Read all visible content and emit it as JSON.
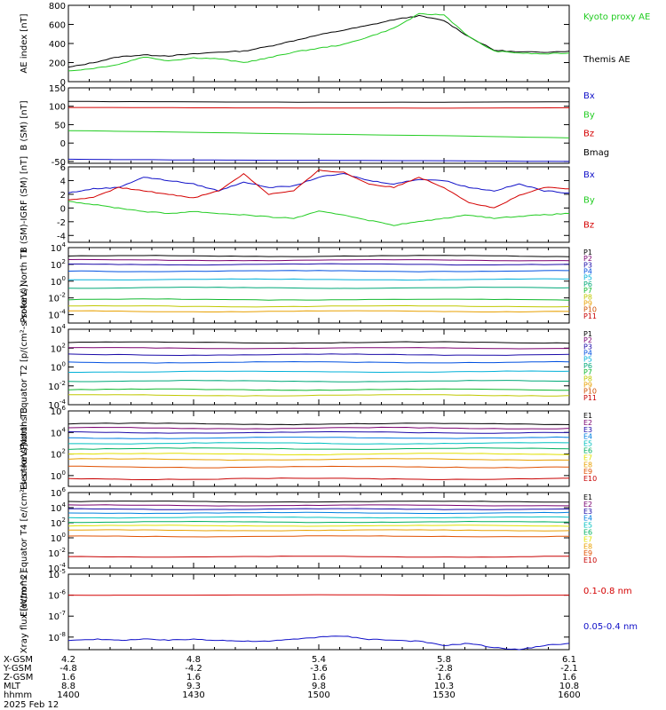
{
  "date_label": "2025 Feb 12",
  "colors": {
    "black": "#000000",
    "red": "#d40000",
    "green": "#22cc22",
    "blue": "#1010c8",
    "P": [
      "#000000",
      "#7a0070",
      "#1a0aa8",
      "#0050e0",
      "#00b0d8",
      "#00a878",
      "#10b830",
      "#c0c800",
      "#e8a000",
      "#d05000",
      "#c80000"
    ],
    "E": [
      "#000000",
      "#7a0070",
      "#1a0aa8",
      "#0080e0",
      "#00c0c0",
      "#00b060",
      "#e0e000",
      "#e8a000",
      "#e05000",
      "#c80000"
    ]
  },
  "time_axis": {
    "ticks": [
      "1400",
      "1430",
      "1500",
      "1530",
      "1600"
    ],
    "rows": [
      {
        "label": "X-GSM",
        "values": [
          "4.2",
          "4.8",
          "5.4",
          "5.8",
          "6.1"
        ]
      },
      {
        "label": "Y-GSM",
        "values": [
          "-4.8",
          "-4.2",
          "-3.6",
          "-2.8",
          "-2.1"
        ]
      },
      {
        "label": "Z-GSM",
        "values": [
          "1.6",
          "1.6",
          "1.6",
          "1.6",
          "1.6"
        ]
      },
      {
        "label": "MLT",
        "values": [
          "8.8",
          "9.3",
          "9.8",
          "10.3",
          "10.8"
        ]
      },
      {
        "label": "hhmm",
        "values": [
          "1400",
          "1430",
          "1500",
          "1530",
          "1600"
        ]
      }
    ]
  },
  "chart_data": [
    {
      "type": "line",
      "id": "ae",
      "ylabel": "AE index [nT]",
      "ylim": [
        0,
        800
      ],
      "yticks": [
        "0",
        "200",
        "400",
        "600",
        "800"
      ],
      "scale": "linear",
      "x_range_minutes": [
        0,
        120
      ],
      "series": [
        {
          "name": "Themis AE",
          "color": "#000000",
          "x": [
            0,
            6,
            12,
            18,
            24,
            30,
            36,
            42,
            48,
            54,
            60,
            66,
            72,
            78,
            84,
            90,
            96,
            102,
            108,
            114,
            120
          ],
          "y": [
            150,
            200,
            260,
            280,
            270,
            290,
            310,
            320,
            370,
            430,
            490,
            540,
            590,
            650,
            690,
            640,
            470,
            330,
            310,
            310,
            320
          ]
        },
        {
          "name": "Kyoto proxy AE",
          "color": "#22cc22",
          "x": [
            0,
            6,
            12,
            18,
            24,
            30,
            36,
            42,
            48,
            54,
            60,
            66,
            72,
            78,
            84,
            90,
            96,
            102,
            108,
            114,
            120
          ],
          "y": [
            110,
            140,
            180,
            260,
            220,
            250,
            240,
            200,
            250,
            310,
            350,
            390,
            470,
            560,
            710,
            700,
            470,
            320,
            300,
            290,
            300
          ]
        }
      ],
      "legend": [
        "Kyoto proxy AE",
        "Themis AE"
      ]
    },
    {
      "type": "line",
      "id": "bsm",
      "ylabel": "B (SM) [nT]",
      "ylim": [
        -55,
        150
      ],
      "yticks": [
        "-50",
        "0",
        "50",
        "100",
        "150"
      ],
      "scale": "linear",
      "series": [
        {
          "name": "Bx",
          "color": "#1010c8",
          "x": [
            0,
            30,
            60,
            90,
            120
          ],
          "y": [
            -44,
            -46,
            -47,
            -48,
            -50
          ]
        },
        {
          "name": "By",
          "color": "#22cc22",
          "x": [
            0,
            30,
            60,
            90,
            120
          ],
          "y": [
            34,
            29,
            24,
            20,
            14
          ]
        },
        {
          "name": "Bz",
          "color": "#d40000",
          "x": [
            0,
            30,
            60,
            90,
            120
          ],
          "y": [
            97,
            96,
            95,
            95,
            96
          ]
        },
        {
          "name": "Bmag",
          "color": "#000000",
          "x": [
            0,
            30,
            60,
            90,
            120
          ],
          "y": [
            113,
            112,
            111,
            111,
            112
          ]
        }
      ],
      "legend": [
        "Bx",
        "By",
        "Bz",
        "Bmag"
      ]
    },
    {
      "type": "line",
      "id": "bigrf",
      "ylabel": "B (SM)-IGRF (SM) [nT]",
      "ylim": [
        -5,
        6
      ],
      "yticks": [
        "-4",
        "-2",
        "0",
        "2",
        "4",
        "6"
      ],
      "scale": "linear",
      "series": [
        {
          "name": "Bx",
          "color": "#1010c8",
          "x": [
            0,
            6,
            12,
            18,
            24,
            30,
            36,
            42,
            48,
            54,
            60,
            66,
            72,
            78,
            84,
            90,
            96,
            102,
            108,
            114,
            120
          ],
          "y": [
            2.2,
            2.8,
            3.0,
            4.5,
            4.0,
            3.5,
            2.5,
            3.8,
            3.0,
            3.2,
            4.5,
            5.0,
            4.0,
            3.5,
            4.2,
            4.0,
            3.0,
            2.5,
            3.5,
            2.5,
            2.2
          ]
        },
        {
          "name": "By",
          "color": "#22cc22",
          "x": [
            0,
            6,
            12,
            18,
            24,
            30,
            36,
            42,
            48,
            54,
            60,
            66,
            72,
            78,
            84,
            90,
            96,
            102,
            108,
            114,
            120
          ],
          "y": [
            1.0,
            0.5,
            0.0,
            -0.5,
            -0.8,
            -0.5,
            -0.8,
            -1.0,
            -1.3,
            -1.5,
            -0.5,
            -1.0,
            -1.8,
            -2.5,
            -2.0,
            -1.5,
            -1.0,
            -1.5,
            -1.2,
            -1.0,
            -0.8
          ]
        },
        {
          "name": "Bz",
          "color": "#d40000",
          "x": [
            0,
            6,
            12,
            18,
            24,
            30,
            36,
            42,
            48,
            54,
            60,
            66,
            72,
            78,
            84,
            90,
            96,
            102,
            108,
            114,
            120
          ],
          "y": [
            1.2,
            1.5,
            3.0,
            2.5,
            2.0,
            1.5,
            2.5,
            5.0,
            2.0,
            2.5,
            5.5,
            5.2,
            3.5,
            3.0,
            4.5,
            3.0,
            0.8,
            0.0,
            1.8,
            3.0,
            2.8
          ]
        }
      ],
      "legend": [
        "Bx",
        "By",
        "Bz"
      ]
    },
    {
      "type": "line",
      "id": "pn",
      "ylabel": "Protons North T1",
      "scale": "log",
      "ylim_exp": [
        -5,
        4
      ],
      "ytick_exps": [
        -4,
        -2,
        0,
        2,
        4
      ],
      "series": [
        {
          "name": "P1",
          "y_exp": 3.0
        },
        {
          "name": "P2",
          "y_exp": 2.5
        },
        {
          "name": "P3",
          "y_exp": 2.0
        },
        {
          "name": "P4",
          "y_exp": 1.2
        },
        {
          "name": "P5",
          "y_exp": 0.2
        },
        {
          "name": "P6",
          "y_exp": -0.8
        },
        {
          "name": "P7",
          "y_exp": -2.2
        },
        {
          "name": "P8",
          "y_exp": -3.0
        },
        {
          "name": "P9",
          "y_exp": -3.6
        },
        {
          "name": "P10",
          "y_exp": null
        },
        {
          "name": "P11",
          "y_exp": null
        }
      ],
      "legend": [
        "P1",
        "P2",
        "P3",
        "P4",
        "P5",
        "P6",
        "P7",
        "P8",
        "P9",
        "P10",
        "P11"
      ]
    },
    {
      "type": "line",
      "id": "pe",
      "ylabel": "Protons Equator T2 [p/(cm²-s-sr-keV)]",
      "scale": "log",
      "ylim_exp": [
        -4,
        4
      ],
      "ytick_exps": [
        -4,
        -2,
        0,
        2,
        4
      ],
      "series": [
        {
          "name": "P1",
          "y_exp": 2.6
        },
        {
          "name": "P2",
          "y_exp": 2.0
        },
        {
          "name": "P3",
          "y_exp": 1.3
        },
        {
          "name": "P4",
          "y_exp": 0.5
        },
        {
          "name": "P5",
          "y_exp": -0.5
        },
        {
          "name": "P6",
          "y_exp": -1.5
        },
        {
          "name": "P7",
          "y_exp": -2.4
        },
        {
          "name": "P8",
          "y_exp": -3.0
        },
        {
          "name": "P9",
          "y_exp": null
        },
        {
          "name": "P10",
          "y_exp": null
        },
        {
          "name": "P11",
          "y_exp": null
        }
      ],
      "legend": [
        "P1",
        "P2",
        "P3",
        "P4",
        "P5",
        "P6",
        "P7",
        "P8",
        "P9",
        "P10",
        "P11"
      ]
    },
    {
      "type": "line",
      "id": "en",
      "ylabel": "Electrons North T3",
      "scale": "log",
      "ylim_exp": [
        -1,
        6
      ],
      "ytick_exps": [
        0,
        2,
        4,
        6
      ],
      "series": [
        {
          "name": "E1",
          "y_exp": 4.8
        },
        {
          "name": "E2",
          "y_exp": 4.4
        },
        {
          "name": "E3",
          "y_exp": 4.0
        },
        {
          "name": "E4",
          "y_exp": 3.5
        },
        {
          "name": "E5",
          "y_exp": 3.0
        },
        {
          "name": "E6",
          "y_exp": 2.5
        },
        {
          "name": "E7",
          "y_exp": 2.0
        },
        {
          "name": "E8",
          "y_exp": 1.5
        },
        {
          "name": "E9",
          "y_exp": 0.8
        },
        {
          "name": "E10",
          "y_exp": -0.3
        }
      ],
      "legend": [
        "E1",
        "E2",
        "E3",
        "E4",
        "E5",
        "E6",
        "E7",
        "E8",
        "E9",
        "E10"
      ]
    },
    {
      "type": "line",
      "id": "ee",
      "ylabel": "Electrons Equator T4 [e/(cm²-s-sr-keV)]",
      "scale": "log",
      "ylim_exp": [
        -4,
        6
      ],
      "ytick_exps": [
        -4,
        -2,
        0,
        2,
        4,
        6
      ],
      "series": [
        {
          "name": "E1",
          "y_exp": 4.8
        },
        {
          "name": "E2",
          "y_exp": 4.3
        },
        {
          "name": "E3",
          "y_exp": 3.8
        },
        {
          "name": "E4",
          "y_exp": 3.3
        },
        {
          "name": "E5",
          "y_exp": 2.7
        },
        {
          "name": "E6",
          "y_exp": 2.1
        },
        {
          "name": "E7",
          "y_exp": 1.6
        },
        {
          "name": "E8",
          "y_exp": 1.0
        },
        {
          "name": "E9",
          "y_exp": 0.2
        },
        {
          "name": "E10",
          "y_exp": -2.5
        }
      ],
      "legend": [
        "E1",
        "E2",
        "E3",
        "E4",
        "E5",
        "E6",
        "E7",
        "E8",
        "E9",
        "E10"
      ]
    },
    {
      "type": "line",
      "id": "xray",
      "ylabel": "Xray flux [W/m^2]",
      "scale": "log",
      "ylim_exp": [
        -8.6,
        -5
      ],
      "ytick_exps": [
        -8,
        -7,
        -6,
        -5
      ],
      "series": [
        {
          "name": "0.1-0.8 nm",
          "color": "#d40000",
          "x": [
            0,
            30,
            60,
            90,
            120
          ],
          "y_exp": [
            -6.0,
            -6.0,
            -5.98,
            -6.0,
            -6.0
          ]
        },
        {
          "name": "0.05-0.4 nm",
          "color": "#1010c8",
          "x": [
            0,
            6,
            12,
            18,
            24,
            30,
            36,
            42,
            48,
            54,
            60,
            66,
            72,
            78,
            84,
            90,
            96,
            102,
            108,
            114,
            120
          ],
          "y_exp": [
            -8.15,
            -8.1,
            -8.15,
            -8.1,
            -8.15,
            -8.1,
            -8.15,
            -8.2,
            -8.2,
            -8.1,
            -8.0,
            -7.95,
            -8.1,
            -8.15,
            -8.2,
            -8.4,
            -8.3,
            -8.5,
            -8.6,
            -8.4,
            -8.3
          ]
        }
      ],
      "legend": [
        "0.1-0.8 nm",
        "0.05-0.4 nm"
      ]
    }
  ]
}
